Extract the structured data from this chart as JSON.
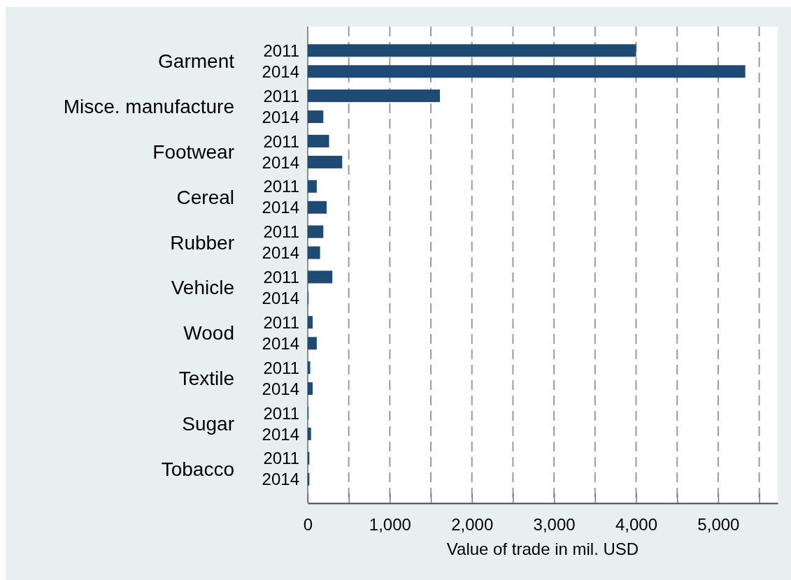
{
  "chart_data": {
    "type": "bar",
    "orientation": "horizontal",
    "xlabel": "Value of trade in mil. USD",
    "categories": [
      "Garment",
      "Misce. manufacture",
      "Footwear",
      "Cereal",
      "Rubber",
      "Vehicle",
      "Wood",
      "Textile",
      "Sugar",
      "Tobacco"
    ],
    "series": [
      {
        "name": "2011",
        "color": "#1f4a73",
        "values": [
          4000,
          1610,
          260,
          110,
          190,
          300,
          60,
          30,
          10,
          20
        ]
      },
      {
        "name": "2014",
        "color": "#1f4a73",
        "values": [
          5330,
          190,
          420,
          230,
          150,
          10,
          110,
          60,
          40,
          20
        ]
      }
    ],
    "xlim": [
      0,
      5725
    ],
    "xticks": [
      0,
      {
        "value": 500,
        "label": null
      },
      {
        "value": 1000,
        "label": "1,000"
      },
      {
        "value": 1500,
        "label": null
      },
      {
        "value": 2000,
        "label": "2,000"
      },
      {
        "value": 2500,
        "label": null
      },
      {
        "value": 3000,
        "label": "3,000"
      },
      {
        "value": 3500,
        "label": null
      },
      {
        "value": 4000,
        "label": "4,000"
      },
      {
        "value": 4500,
        "label": null
      },
      {
        "value": 5000,
        "label": "5,000"
      },
      {
        "value": 5500,
        "label": null
      }
    ],
    "grid": "x"
  }
}
